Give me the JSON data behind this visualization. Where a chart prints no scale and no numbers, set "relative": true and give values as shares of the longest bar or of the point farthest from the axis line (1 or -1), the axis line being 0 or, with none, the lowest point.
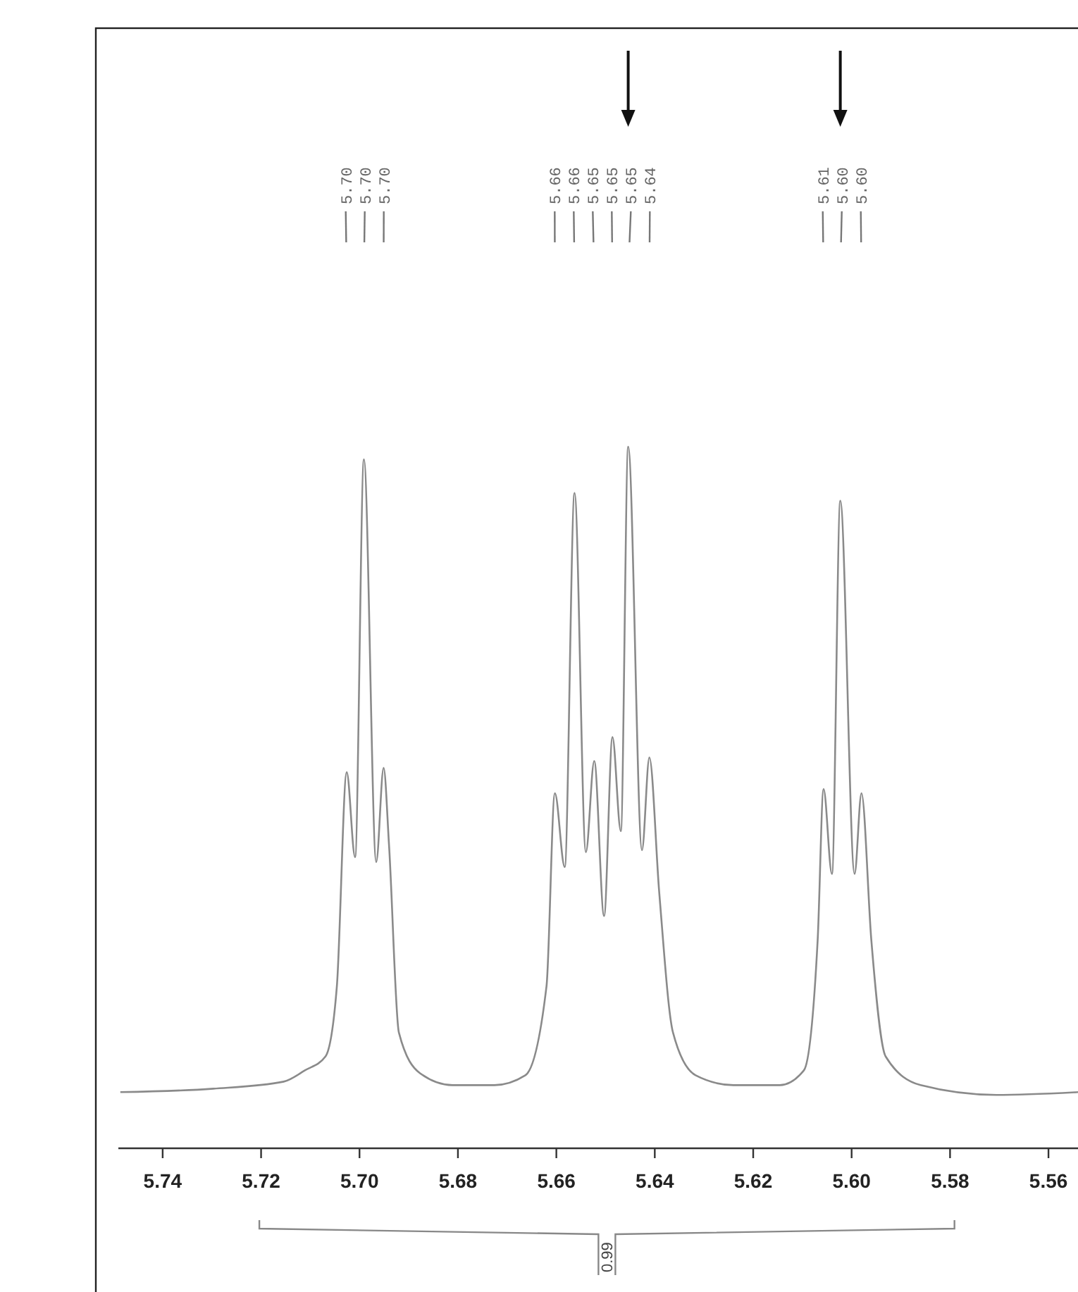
{
  "chart_data": {
    "type": "line",
    "relative": true,
    "xlim": [
      5.749,
      5.554
    ],
    "xticks": [
      {
        "value": 5.74,
        "label": "5.74"
      },
      {
        "value": 5.72,
        "label": "5.72"
      },
      {
        "value": 5.7,
        "label": "5.70"
      },
      {
        "value": 5.68,
        "label": "5.68"
      },
      {
        "value": 5.66,
        "label": "5.66"
      },
      {
        "value": 5.64,
        "label": "5.64"
      },
      {
        "value": 5.62,
        "label": "5.62"
      },
      {
        "value": 5.6,
        "label": "5.60"
      },
      {
        "value": 5.58,
        "label": "5.58"
      },
      {
        "value": 5.56,
        "label": "5.56"
      }
    ],
    "series": [
      {
        "color": "#8a8a8a",
        "x": [
          5.7486,
          5.7297,
          5.7154,
          5.7111,
          5.7069,
          5.7046,
          5.7026,
          5.7009,
          5.6991,
          5.6966,
          5.6951,
          5.694,
          5.692,
          5.6877,
          5.6811,
          5.6726,
          5.6663,
          5.662,
          5.6603,
          5.6583,
          5.6563,
          5.654,
          5.6523,
          5.6503,
          5.6486,
          5.6469,
          5.6454,
          5.6426,
          5.6411,
          5.6391,
          5.6363,
          5.6317,
          5.624,
          5.6146,
          5.6097,
          5.6069,
          5.6057,
          5.604,
          5.6023,
          5.5994,
          5.598,
          5.596,
          5.5931,
          5.586,
          5.5706,
          5.554
        ],
        "values": [
          0.08,
          0.085,
          0.095,
          0.111,
          0.131,
          0.231,
          0.536,
          0.415,
          0.982,
          0.408,
          0.542,
          0.432,
          0.165,
          0.107,
          0.09,
          0.09,
          0.104,
          0.231,
          0.506,
          0.401,
          0.934,
          0.422,
          0.552,
          0.331,
          0.586,
          0.452,
          1.0,
          0.425,
          0.557,
          0.365,
          0.165,
          0.104,
          0.09,
          0.09,
          0.111,
          0.297,
          0.512,
          0.391,
          0.923,
          0.391,
          0.506,
          0.297,
          0.131,
          0.09,
          0.076,
          0.08
        ]
      }
    ],
    "line_style": "solid",
    "marker": "none",
    "grid": false,
    "annotations": [
      {
        "text": "5.70",
        "x": 5.7026
      },
      {
        "text": "5.70",
        "x": 5.6991
      },
      {
        "text": "5.70",
        "x": 5.6951
      },
      {
        "text": "5.66",
        "x": 5.6603
      },
      {
        "text": "5.66",
        "x": 5.6563
      },
      {
        "text": "5.65",
        "x": 5.6523
      },
      {
        "text": "5.65",
        "x": 5.6486
      },
      {
        "text": "5.65",
        "x": 5.6454
      },
      {
        "text": "5.64",
        "x": 5.6411
      },
      {
        "text": "5.61",
        "x": 5.6057
      },
      {
        "text": "5.60",
        "x": 5.6023
      },
      {
        "text": "5.60",
        "x": 5.598
      },
      "0.99"
    ]
  }
}
